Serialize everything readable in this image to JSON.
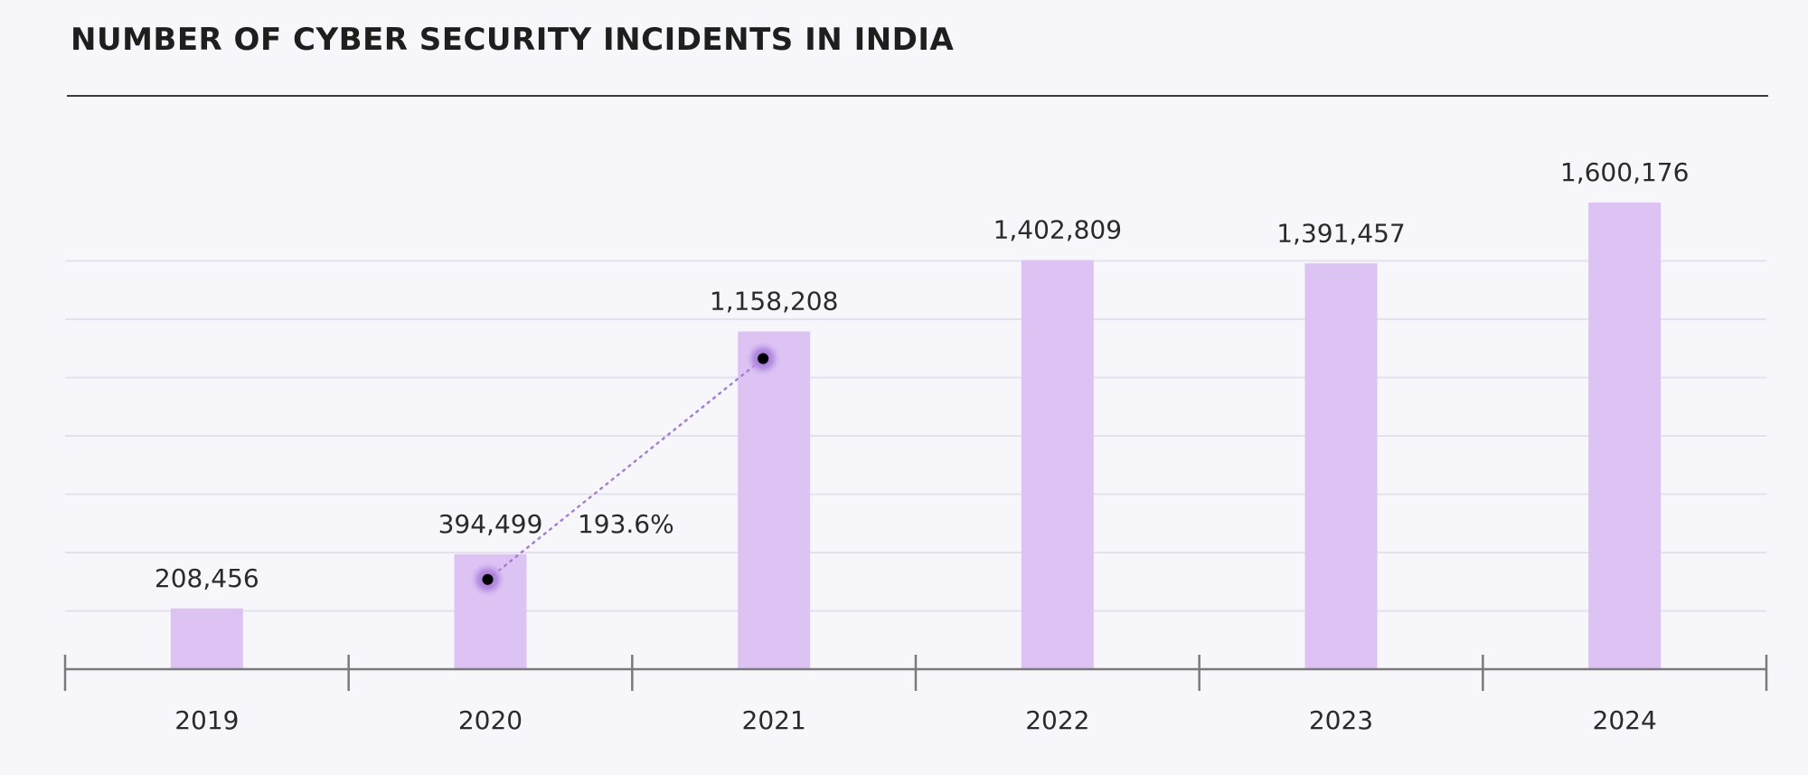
{
  "chart_data": {
    "type": "bar",
    "title": "NUMBER OF CYBER SECURITY INCIDENTS IN INDIA",
    "categories": [
      "2019",
      "2020",
      "2021",
      "2022",
      "2023",
      "2024"
    ],
    "values": [
      208456,
      394499,
      1158208,
      1402809,
      1391457,
      1600176
    ],
    "data_labels": [
      "208,456",
      "394,499",
      "1,158,208",
      "1,402,809",
      "1,391,457",
      "1,600,176"
    ],
    "ylim": [
      0,
      1800000
    ],
    "grid": true,
    "annotations": [
      {
        "from_category": "2020",
        "to_category": "2021",
        "label": "193.6%"
      }
    ],
    "colors": {
      "bar": "#dcc3f4",
      "marker": "#a67fd0",
      "marker_dot": "#000000"
    }
  }
}
